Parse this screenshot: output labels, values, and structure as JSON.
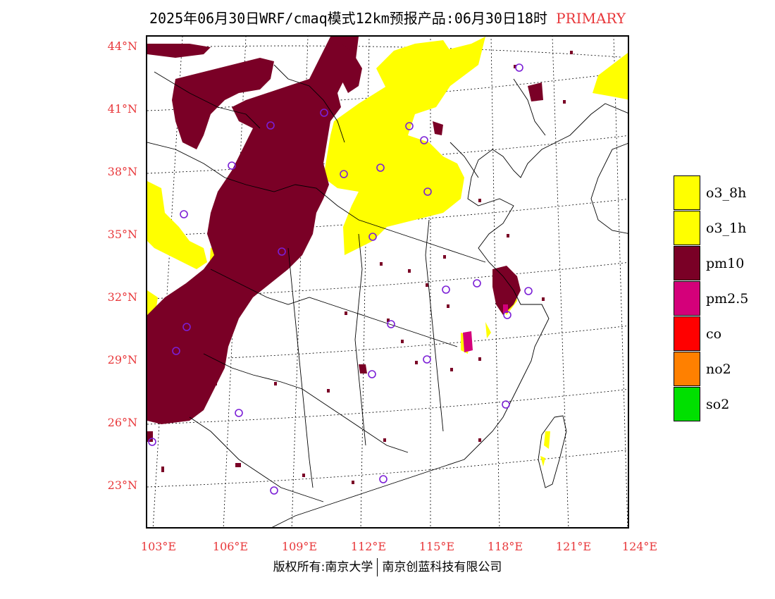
{
  "title": {
    "main": "2025年06月30日WRF/cmaq模式12km预报产品:06月30日18时",
    "tag": "PRIMARY"
  },
  "axes": {
    "lat_labels": [
      "44°N",
      "41°N",
      "38°N",
      "35°N",
      "32°N",
      "29°N",
      "26°N",
      "23°N"
    ],
    "lon_labels": [
      "103°E",
      "106°E",
      "109°E",
      "112°E",
      "115°E",
      "118°E",
      "121°E",
      "124°E"
    ],
    "label_color": "#e8373a"
  },
  "legend": {
    "items": [
      {
        "label": "o3_8h",
        "color": "#ffff00"
      },
      {
        "label": "o3_1h",
        "color": "#ffff00"
      },
      {
        "label": "pm10",
        "color": "#7a0026"
      },
      {
        "label": "pm2.5",
        "color": "#d4007a"
      },
      {
        "label": "co",
        "color": "#ff0000"
      },
      {
        "label": "no2",
        "color": "#ff8000"
      },
      {
        "label": "so2",
        "color": "#00e000"
      }
    ]
  },
  "footer": {
    "left": "版权所有:南京大学",
    "right": "南京创蓝科技有限公司"
  },
  "map_colors": {
    "pm10": "#7a0026",
    "o3": "#ffff00",
    "pm25": "#d4007a",
    "station": "#7b1fd6",
    "border": "#000000"
  }
}
